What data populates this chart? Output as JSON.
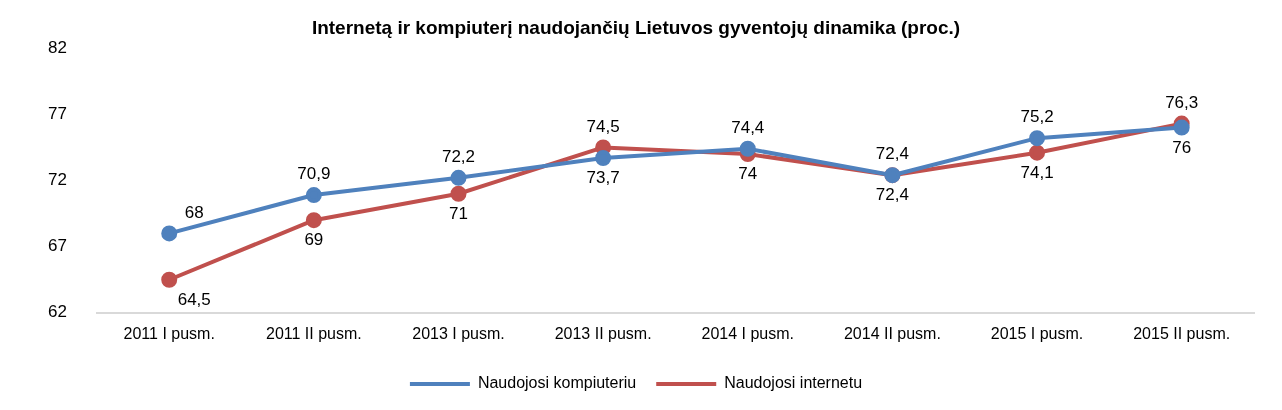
{
  "chart_data": {
    "type": "line",
    "title": "Internetą ir kompiuterį naudojančių Lietuvos gyventojų dinamika (proc.)",
    "categories": [
      "2011 I pusm.",
      "2011 II pusm.",
      "2013 I pusm.",
      "2013 II pusm.",
      "2014 I pusm.",
      "2014 II pusm.",
      "2015 I pusm.",
      "2015 II pusm."
    ],
    "series": [
      {
        "name": "Naudojosi kompiuteriu",
        "color": "#4f81bd",
        "values": [
          68,
          70.9,
          72.2,
          73.7,
          74.4,
          72.4,
          75.2,
          76
        ],
        "value_labels": [
          "68",
          "70,9",
          "72,2",
          "73,7",
          "74,4",
          "72,4",
          "75,2",
          "76"
        ]
      },
      {
        "name": "Naudojosi internetu",
        "color": "#c0504d",
        "values": [
          64.5,
          69,
          71,
          74.5,
          74,
          72.4,
          74.1,
          76.3
        ],
        "value_labels": [
          "64,5",
          "69",
          "71",
          "74,5",
          "74",
          "72,4",
          "74,1",
          "76,3"
        ]
      }
    ],
    "ylim": [
      62,
      82
    ],
    "yticks": [
      62,
      67,
      72,
      77,
      82
    ],
    "grid": false,
    "legend": "bottom",
    "marker": "circle",
    "line_style": "solid"
  }
}
